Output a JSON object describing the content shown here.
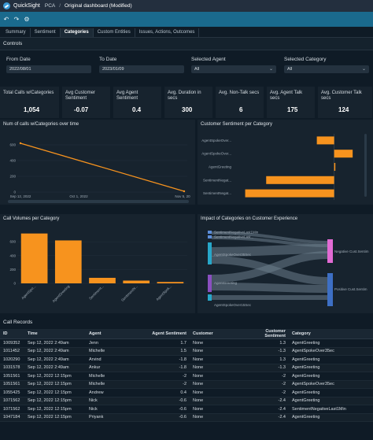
{
  "app": {
    "brand": "QuickSight",
    "crumb": "PCA",
    "crumb_sep": "/",
    "title": "Original dashboard (Modified)"
  },
  "toolbar": {
    "icons": [
      "undo-icon",
      "redo-icon",
      "settings-icon"
    ]
  },
  "tabs": [
    {
      "label": "Summary",
      "active": false
    },
    {
      "label": "Sentiment",
      "active": false
    },
    {
      "label": "Categories",
      "active": true
    },
    {
      "label": "Custom Entities",
      "active": false
    },
    {
      "label": "Issues, Actions, Outcomes",
      "active": false
    }
  ],
  "controls": {
    "title": "Controls",
    "from_date": {
      "label": "From Date",
      "value": "2022/08/01"
    },
    "to_date": {
      "label": "To Date",
      "value": "2023/01/09"
    },
    "agent": {
      "label": "Selected Agent",
      "value": "All"
    },
    "category": {
      "label": "Selected Category",
      "value": "All"
    }
  },
  "kpis": [
    {
      "title": "Total Calls w/Categories",
      "value": "1,054"
    },
    {
      "title": "Avg Customer Sentiment",
      "value": "-0.07"
    },
    {
      "title": "Avg Agent Sentiment",
      "value": "0.4"
    },
    {
      "title": "Avg. Duration in secs",
      "value": "300"
    },
    {
      "title": "Avg. Non-Talk secs",
      "value": "6"
    },
    {
      "title": "Avg. Agent Talk secs",
      "value": "175"
    },
    {
      "title": "Avg. Customer Talk secs",
      "value": "124"
    }
  ],
  "chart_data": [
    {
      "type": "line",
      "title": "Num of calls w/Categories over time",
      "x": [
        "Sep 12, 2022",
        "Nov 5, 2022"
      ],
      "x_ticks": [
        "Sep 12, 2022",
        "Oct 1, 2022",
        "Nov 5, 20"
      ],
      "values": [
        620,
        10
      ],
      "y_ticks": [
        0,
        200,
        400,
        600
      ],
      "ylim": [
        0,
        700
      ],
      "color": "#f7931e"
    },
    {
      "type": "bar",
      "orientation": "horizontal",
      "title": "Customer Sentiment per Category",
      "categories": [
        "AgentSpokeOver...",
        "AgentSpokeOver...",
        "AgentGreeting",
        "SentimentNegat...",
        "SentimentNegat..."
      ],
      "values": [
        -0.14,
        0.15,
        0.01,
        -0.55,
        -0.72
      ],
      "xlim": [
        -0.8,
        0.2
      ],
      "color": "#f7931e"
    },
    {
      "type": "bar",
      "title": "Call Volumes per Category",
      "categories": [
        "AgentSpo...",
        "AgentGreeting",
        "Sentiment...",
        "SentimentN...",
        "AgentSpok..."
      ],
      "values": [
        720,
        620,
        80,
        40,
        20
      ],
      "y_ticks": [
        0,
        200,
        400,
        600
      ],
      "ylim": [
        0,
        750
      ],
      "color": "#f7931e"
    },
    {
      "type": "sankey",
      "title": "Impact of Categories on Customer Experience",
      "sources": [
        {
          "label": "SentimentNegativeLast1Min",
          "color": "#5b8dd9"
        },
        {
          "label": "SentimentNegativeLast...",
          "color": "#5b8dd9"
        },
        {
          "label": "AgentSpokeOver35Sec",
          "color": "#27a7c9"
        },
        {
          "label": "AgentGreeting",
          "color": "#8a4fc0"
        },
        {
          "label": "AgentSpokeOver15Sec",
          "color": "#27a7c9"
        }
      ],
      "targets": [
        {
          "label": "Negative Cust.Sentim",
          "color": "#e26bd4"
        },
        {
          "label": "Positive Cust.Sentim",
          "color": "#3d6fc4"
        }
      ]
    }
  ],
  "call_records": {
    "title": "Call Records",
    "columns": [
      "ID",
      "Time",
      "Agent",
      "Agent Sentiment",
      "Customer",
      "Customer Sentiment",
      "Category"
    ],
    "rows": [
      [
        "1009352",
        "Sep 12, 2022 2:49am",
        "Jenn",
        "1.7",
        "None",
        "1.3",
        "AgentGreeting"
      ],
      [
        "1011452",
        "Sep 12, 2022 2:49am",
        "Michelle",
        "1.5",
        "None",
        "-1.3",
        "AgentSpokeOver35ec"
      ],
      [
        "1020290",
        "Sep 12, 2022 2:49am",
        "Arvind",
        "-1.8",
        "None",
        "1.3",
        "AgentGreeting"
      ],
      [
        "1031578",
        "Sep 12, 2022 2:49am",
        "Ankur",
        "-1.8",
        "None",
        "-1.3",
        "AgentGreeting"
      ],
      [
        "1051561",
        "Sep 12, 2022 12:15pm",
        "Michelle",
        "-2",
        "None",
        "-2",
        "AgentGreeting"
      ],
      [
        "1051561",
        "Sep 12, 2022 12:15pm",
        "Michelle",
        "-2",
        "None",
        "-2",
        "AgentSpokeOver35ec"
      ],
      [
        "1055425",
        "Sep 12, 2022 12:15pm",
        "Andrew",
        "0.4",
        "None",
        "-2",
        "AgentGreeting"
      ],
      [
        "1071562",
        "Sep 12, 2022 12:15pm",
        "Nick",
        "-0.6",
        "None",
        "-2.4",
        "AgentGreeting"
      ],
      [
        "1071562",
        "Sep 12, 2022 12:15pm",
        "Nick",
        "-0.6",
        "None",
        "-2.4",
        "SentimentNegativeLast1Min"
      ],
      [
        "1047184",
        "Sep 12, 2022 12:15pm",
        "Priyank",
        "-0.6",
        "None",
        "-2.4",
        "AgentGreeting"
      ]
    ]
  }
}
